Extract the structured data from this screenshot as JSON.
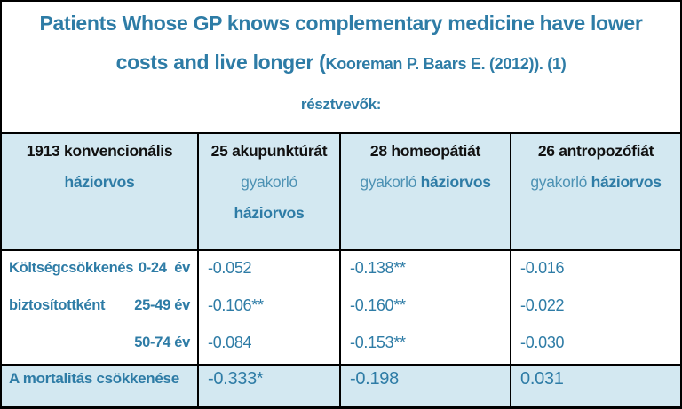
{
  "title": {
    "line1": "Patients Whose GP knows complementary medicine have lower",
    "line2_large": "costs and live longer (",
    "line2_citation": "Kooreman P. Baars E. (2012)). (1)",
    "line3": "résztvevők:"
  },
  "colors": {
    "teal_text": "#2e7ca6",
    "teal_light_text": "#4d92b4",
    "header_black_text": "#111111",
    "row_bg_light_blue": "#d3e8f1",
    "border": "#000000"
  },
  "table": {
    "header": [
      {
        "count_line": "1913 konvencionális",
        "practice_regular": "",
        "gp_bold": "háziorvos"
      },
      {
        "count_line": "25 akupunktúrát",
        "practice_regular": "gyakorló",
        "gp_bold": "háziorvos"
      },
      {
        "count_line": "28 homeopátiát",
        "practice_regular": "gyakorló",
        "gp_bold": "háziorvos"
      },
      {
        "count_line": "26 antropozófiát",
        "practice_regular": "gyakorló",
        "gp_bold": "háziorvos"
      }
    ],
    "cost_row": {
      "label_lines": [
        {
          "left": "Költségcsökkenés",
          "right": "0-24  év"
        },
        {
          "left": "biztosítottként",
          "right": "25-49 év"
        },
        {
          "left": "",
          "right": "50-74 év"
        }
      ],
      "values": [
        [
          "-0.052",
          "-0.106**",
          "-0.084"
        ],
        [
          "-0.138**",
          "-0.160**",
          "-0.153**"
        ],
        [
          "-0.016",
          "-0.022",
          "-0.030"
        ]
      ]
    },
    "mortality_row": {
      "label": "A mortalitás csökkenése",
      "values": [
        "-0.333*",
        "-0.198",
        "0.031"
      ]
    }
  }
}
